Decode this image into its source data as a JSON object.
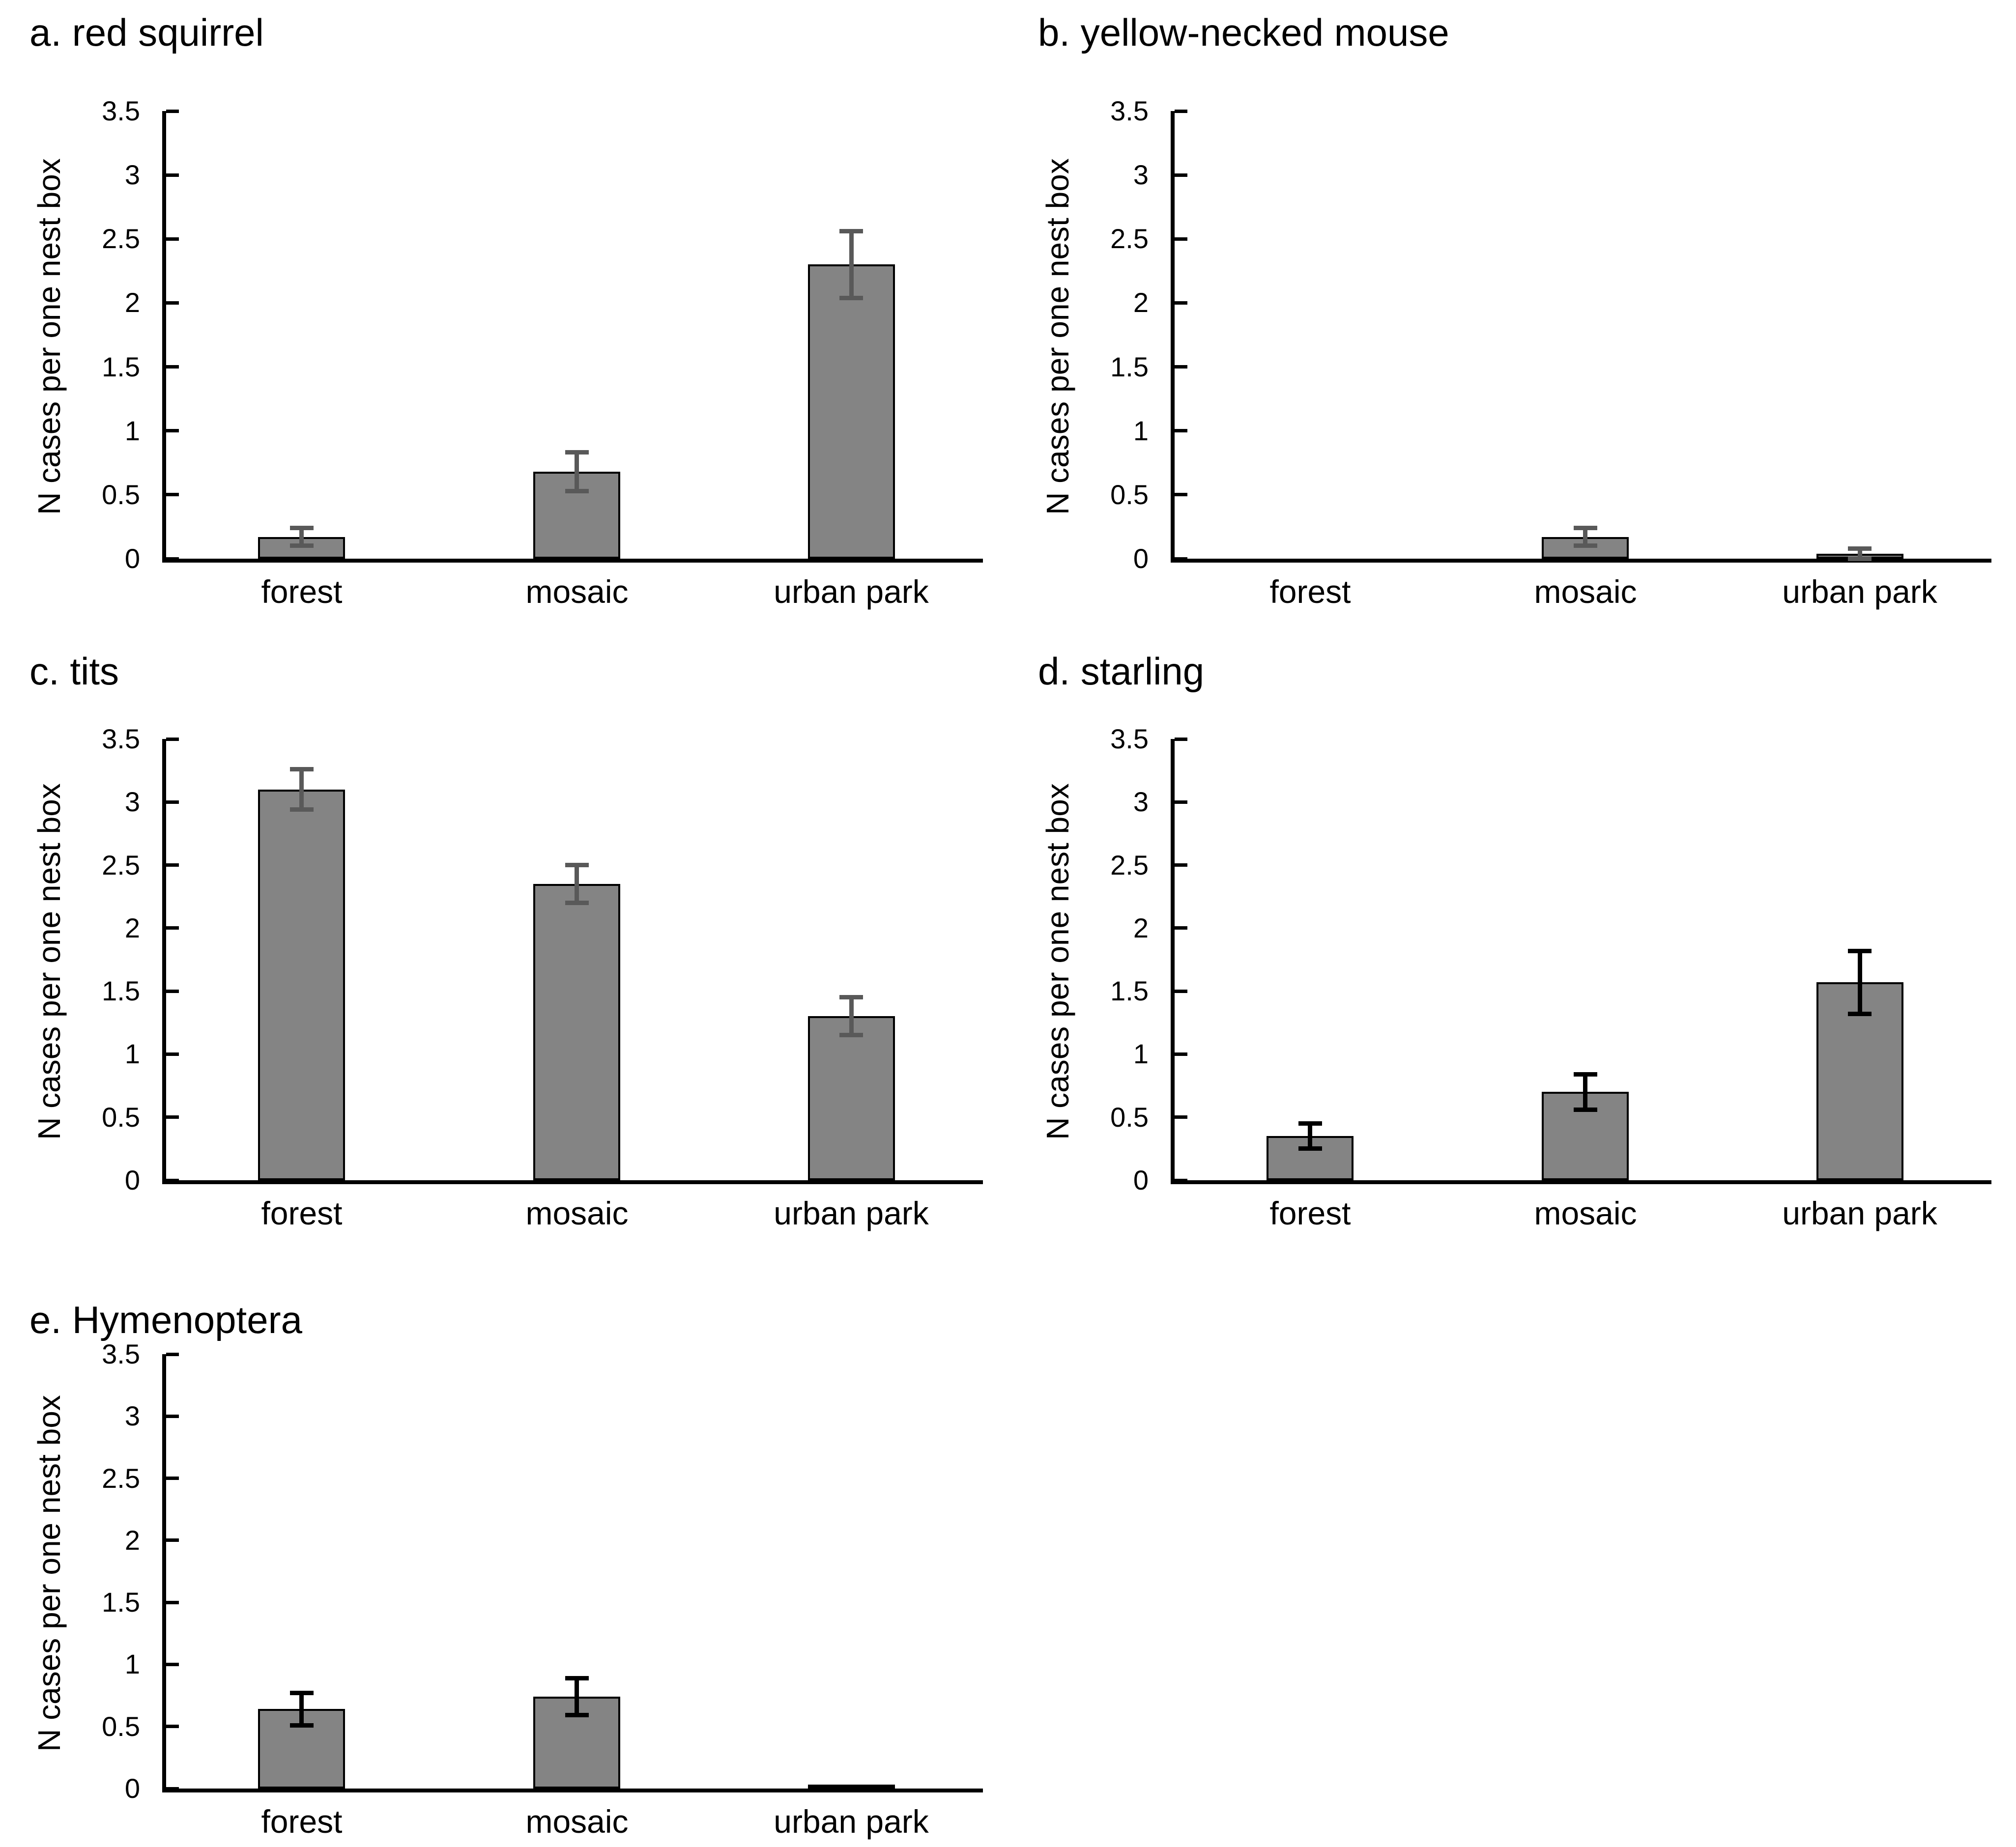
{
  "figure": {
    "background": "#FFFFFF",
    "axis_color": "#000000",
    "bar_fill": "#848484",
    "bar_border": "#000000"
  },
  "chart_data": [
    {
      "type": "bar",
      "panel": "a",
      "title": "a. red squirrel",
      "categories": [
        "forest",
        "mosaic",
        "urban park"
      ],
      "values": [
        0.17,
        0.68,
        2.3
      ],
      "errors": [
        0.07,
        0.15,
        0.26
      ],
      "ylabel": "N cases per one nest box",
      "xlabel": "",
      "ylim": [
        0,
        3.5
      ],
      "yticks": [
        "3.5",
        "3",
        "2.5",
        "2",
        "1.5",
        "1",
        "0.5",
        "0"
      ],
      "grid": "off",
      "legend": "none",
      "bar_fill": "#848484",
      "bar_border": "#000000",
      "error_color": "#595959"
    },
    {
      "type": "bar",
      "panel": "b",
      "title": "b. yellow-necked mouse",
      "categories": [
        "forest",
        "mosaic",
        "urban park"
      ],
      "values": [
        0,
        0.17,
        0.04
      ],
      "errors": [
        0,
        0.07,
        0.04
      ],
      "ylabel": "N cases per one nest box",
      "xlabel": "",
      "ylim": [
        0,
        3.5
      ],
      "yticks": [
        "3.5",
        "3",
        "2.5",
        "2",
        "1.5",
        "1",
        "0.5",
        "0"
      ],
      "grid": "off",
      "legend": "none",
      "bar_fill": "#848484",
      "bar_border": "#000000",
      "error_color": "#595959"
    },
    {
      "type": "bar",
      "panel": "c",
      "title": "c. tits",
      "categories": [
        "forest",
        "mosaic",
        "urban park"
      ],
      "values": [
        3.1,
        2.35,
        1.3
      ],
      "errors": [
        0.16,
        0.15,
        0.15
      ],
      "ylabel": "N cases per one nest box",
      "xlabel": "",
      "ylim": [
        0,
        3.5
      ],
      "yticks": [
        "3.5",
        "3",
        "2.5",
        "2",
        "1.5",
        "1",
        "0.5",
        "0"
      ],
      "grid": "off",
      "legend": "none",
      "bar_fill": "#848484",
      "bar_border": "#000000",
      "error_color": "#595959"
    },
    {
      "type": "bar",
      "panel": "d",
      "title": "d. starling",
      "categories": [
        "forest",
        "mosaic",
        "urban park"
      ],
      "values": [
        0.35,
        0.7,
        1.57
      ],
      "errors": [
        0.1,
        0.14,
        0.25
      ],
      "ylabel": "N cases per one nest box",
      "xlabel": "",
      "ylim": [
        0,
        3.5
      ],
      "yticks": [
        "3.5",
        "3",
        "2.5",
        "2",
        "1.5",
        "1",
        "0.5",
        "0"
      ],
      "grid": "off",
      "legend": "none",
      "bar_fill": "#848484",
      "bar_border": "#000000",
      "error_color": "#000000"
    },
    {
      "type": "bar",
      "panel": "e",
      "title": "e. Hymenoptera",
      "categories": [
        "forest",
        "mosaic",
        "urban park"
      ],
      "values": [
        0.64,
        0.74,
        0.01
      ],
      "errors": [
        0.13,
        0.15,
        0
      ],
      "ylabel": "N cases per one nest box",
      "xlabel": "",
      "ylim": [
        0,
        3.5
      ],
      "yticks": [
        "3.5",
        "3",
        "2.5",
        "2",
        "1.5",
        "1",
        "0.5",
        "0"
      ],
      "grid": "off",
      "legend": "none",
      "bar_fill": "#848484",
      "bar_border": "#000000",
      "error_color": "#000000"
    }
  ]
}
